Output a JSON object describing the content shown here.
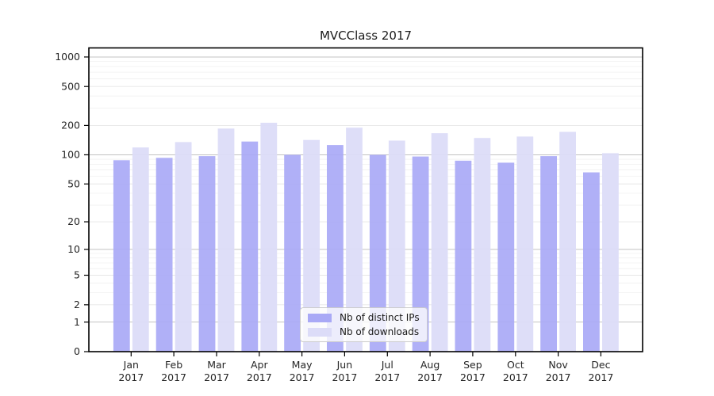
{
  "figure": {
    "background_color": "#ffffff",
    "axes_box_color": "#000000",
    "tick_label_color": "#262626",
    "grid_major_color": "#c3c3c3",
    "grid_mid_color": "#e6e6e6",
    "grid_minor_color": "#f0f0f0"
  },
  "chart_data": {
    "type": "bar",
    "title": "MVCClass 2017",
    "xlabel": "",
    "ylabel": "",
    "y_scale": "log1p",
    "grid": true,
    "legend_position": "lower center",
    "categories": [
      "Jan 2017",
      "Feb 2017",
      "Mar 2017",
      "Apr 2017",
      "May 2017",
      "Jun 2017",
      "Jul 2017",
      "Aug 2017",
      "Sep 2017",
      "Oct 2017",
      "Nov 2017",
      "Dec 2017"
    ],
    "x_tick_month": [
      "Jan",
      "Feb",
      "Mar",
      "Apr",
      "May",
      "Jun",
      "Jul",
      "Aug",
      "Sep",
      "Oct",
      "Nov",
      "Dec"
    ],
    "x_tick_year": [
      "2017",
      "2017",
      "2017",
      "2017",
      "2017",
      "2017",
      "2017",
      "2017",
      "2017",
      "2017",
      "2017",
      "2017"
    ],
    "y_ticks": [
      1000,
      500,
      200,
      100,
      50,
      20,
      10,
      5,
      2,
      1,
      0
    ],
    "y_tick_labels": [
      "1000",
      "500",
      "200",
      "100",
      "50",
      "20",
      "10",
      "5",
      "2",
      "1",
      "0"
    ],
    "ylim": [
      0,
      1260
    ],
    "series": [
      {
        "name": "Nb of distinct IPs",
        "color": "#a9a9f6",
        "values": [
          88,
          93,
          97,
          137,
          100,
          126,
          100,
          96,
          87,
          83,
          97,
          66
        ]
      },
      {
        "name": "Nb of downloads",
        "color": "#dcdcf8",
        "values": [
          119,
          135,
          186,
          213,
          142,
          190,
          140,
          167,
          149,
          154,
          172,
          104
        ]
      }
    ],
    "grid_minor_values": [
      3,
      4,
      6,
      7,
      8,
      9,
      30,
      40,
      60,
      70,
      80,
      90,
      300,
      400,
      600,
      700,
      800,
      900
    ],
    "grid_mid_values": [
      2,
      5,
      20,
      50,
      200,
      500
    ],
    "grid_major_values": [
      1,
      10,
      100,
      1000
    ]
  }
}
